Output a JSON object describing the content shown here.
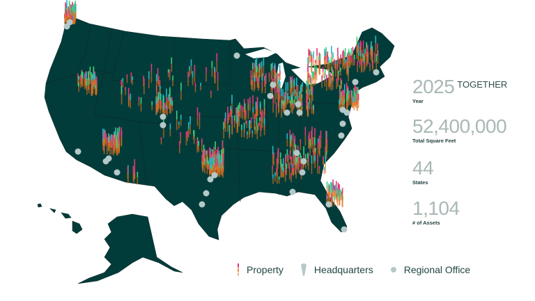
{
  "stats": [
    {
      "value": "2025",
      "suffix": "TOGETHER",
      "label": "Year"
    },
    {
      "value": "52,400,000",
      "suffix": "",
      "label": "Total Square Feet"
    },
    {
      "value": "44",
      "suffix": "",
      "label": "States"
    },
    {
      "value": "1,104",
      "suffix": "",
      "label": "# of Assets"
    }
  ],
  "legend": {
    "property": "Property",
    "headquarters": "Headquarters",
    "regional_office": "Regional Office"
  },
  "colors": {
    "land": "#023c3a",
    "border": "#0c2a29",
    "marker_office": "#b5c8c8",
    "property_pink": "#e03a74",
    "property_orange": "#e0721f",
    "property_green": "#3fcf7d",
    "property_cyan": "#27b7c7"
  }
}
